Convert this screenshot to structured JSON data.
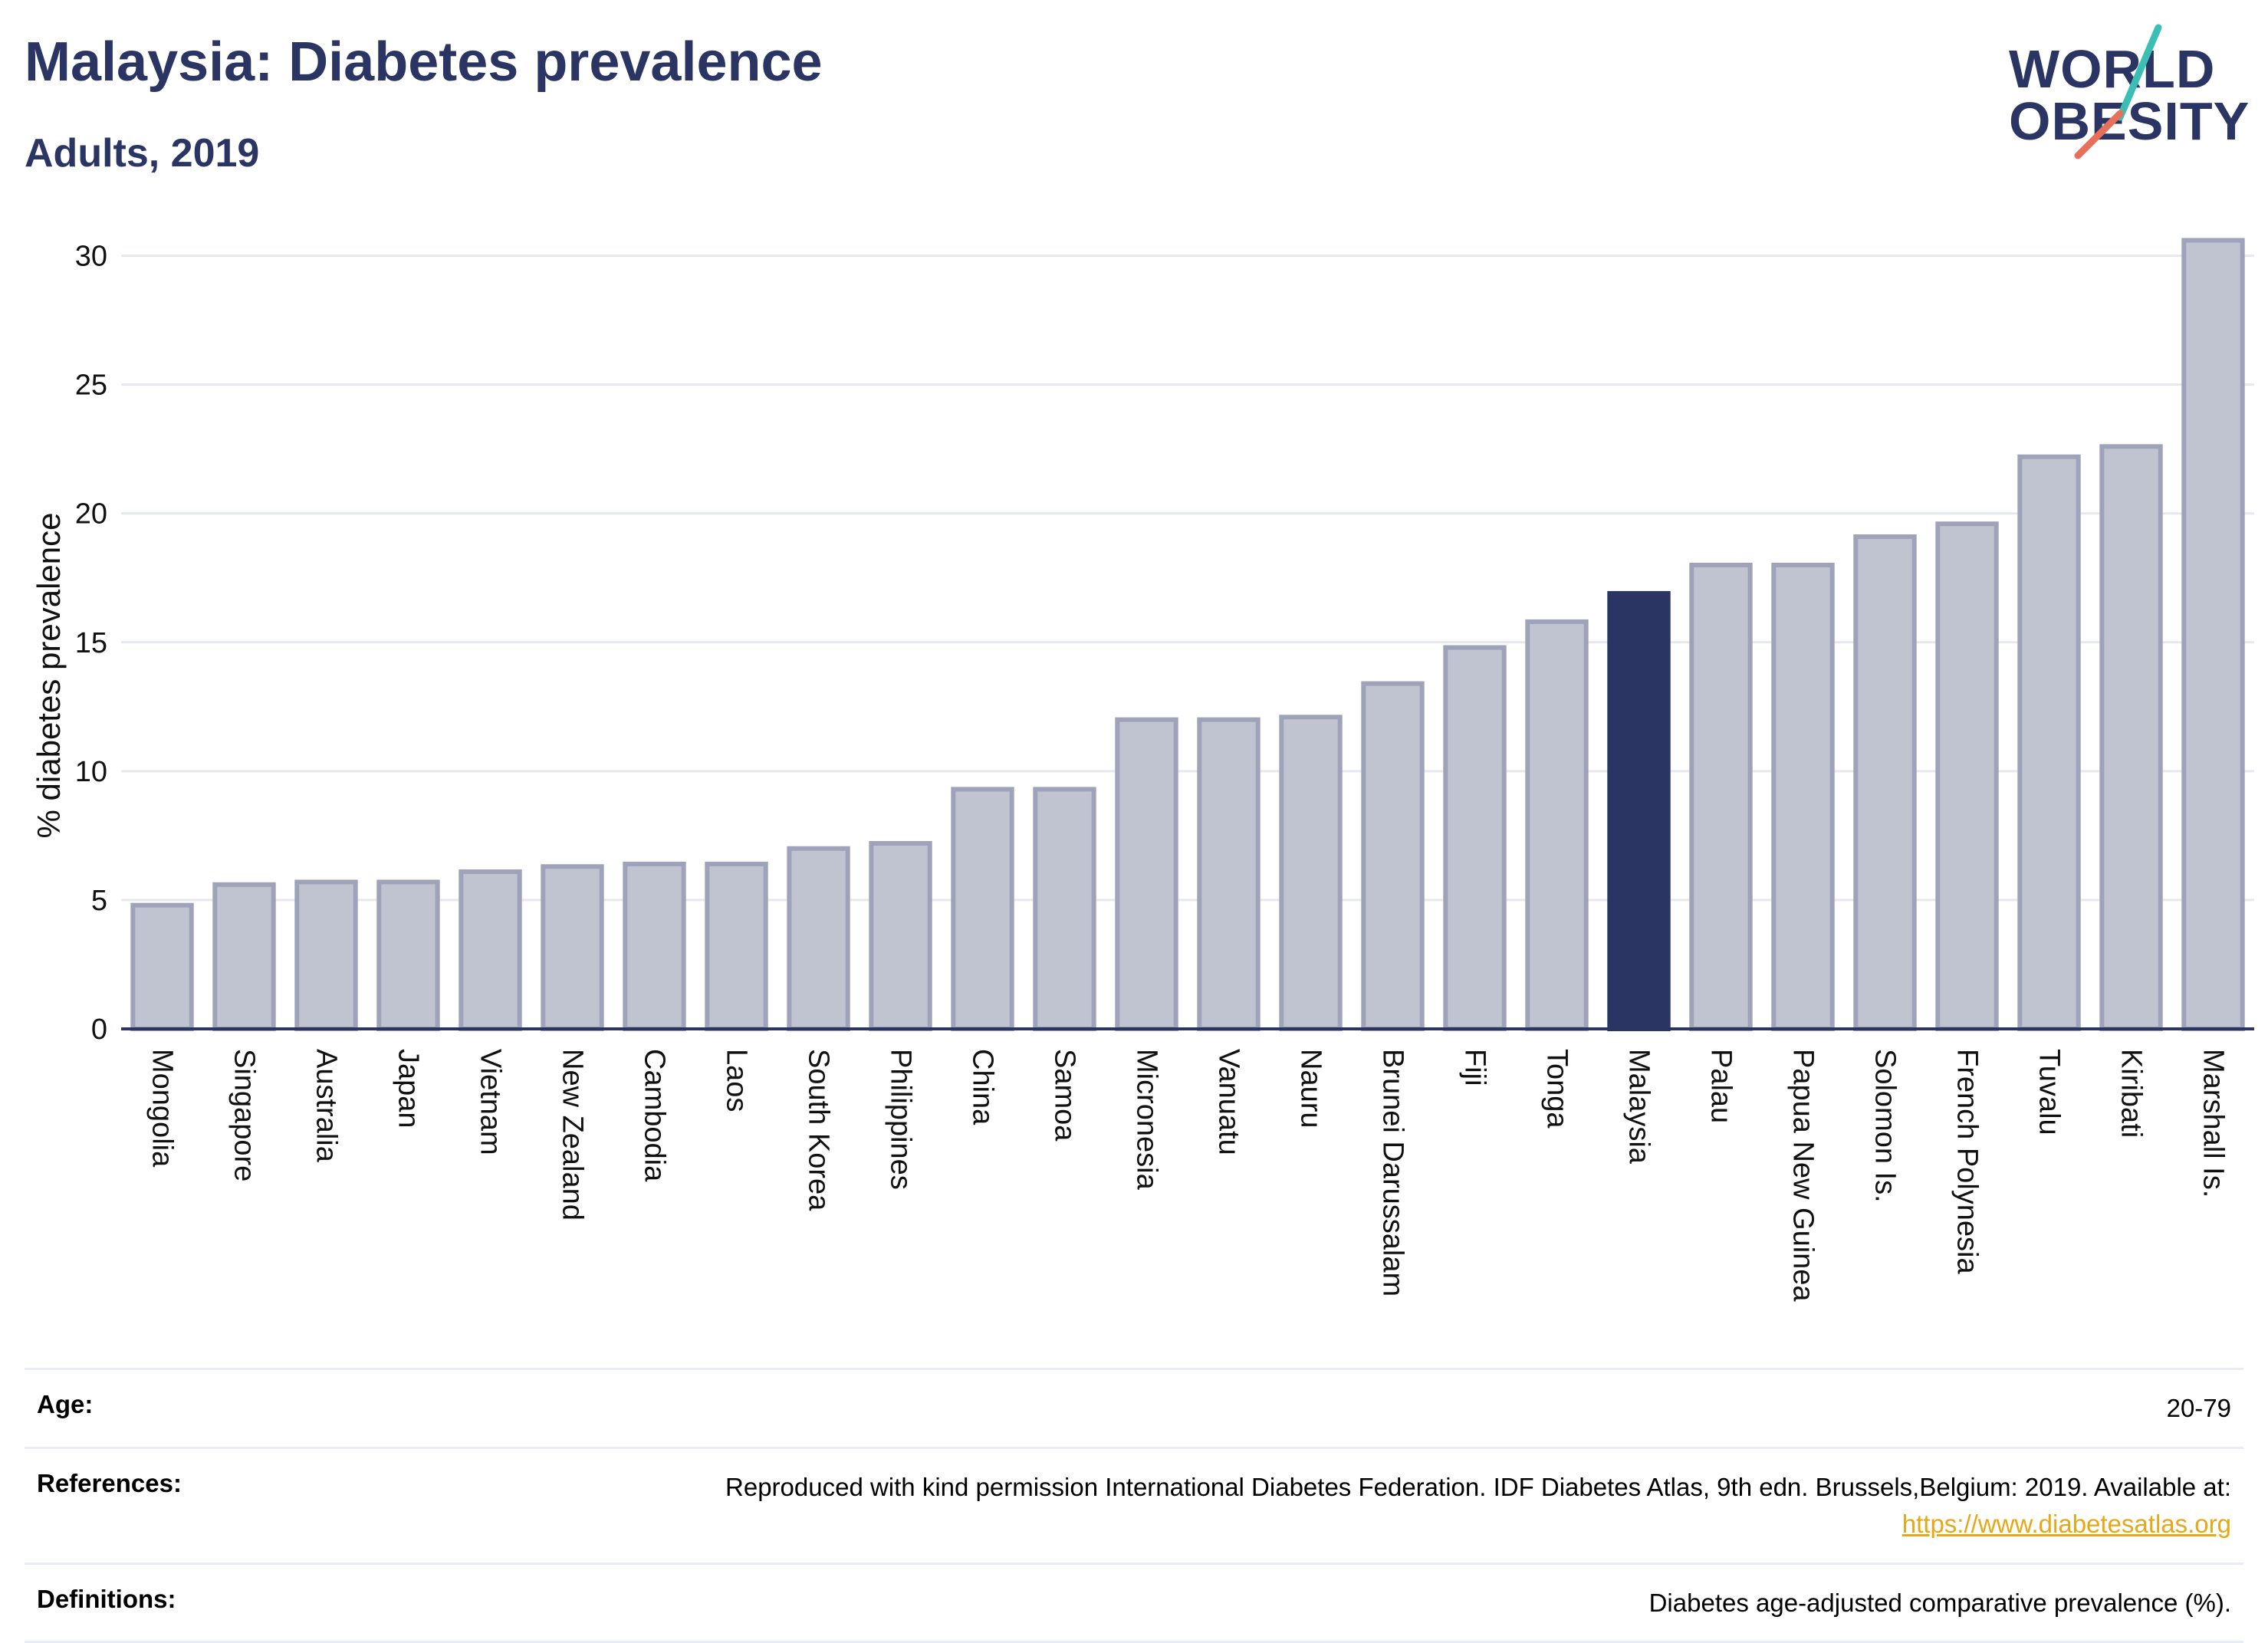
{
  "header": {
    "title": "Malaysia: Diabetes prevalence",
    "subtitle": "Adults, 2019"
  },
  "logo": {
    "line1": "WORLD",
    "line2": "OBESITY",
    "text_color": "#2b3563",
    "slash_colors": [
      "#3bbfb5",
      "#e8705a"
    ]
  },
  "chart_data": {
    "type": "bar",
    "ylabel": "% diabetes prevalence",
    "xlabel": "",
    "ylim": [
      0,
      31
    ],
    "yticks": [
      0,
      5,
      10,
      15,
      20,
      25,
      30
    ],
    "grid": true,
    "highlight": "Malaysia",
    "colors": {
      "bar": "#c0c3d0",
      "bar_border": "#9ea3ba",
      "highlight": "#2b3563"
    },
    "categories": [
      "Mongolia",
      "Singapore",
      "Australia",
      "Japan",
      "Vietnam",
      "New Zealand",
      "Cambodia",
      "Laos",
      "South Korea",
      "Philippines",
      "China",
      "Samoa",
      "Micronesia",
      "Vanuatu",
      "Nauru",
      "Brunei Darussalam",
      "Fiji",
      "Tonga",
      "Malaysia",
      "Palau",
      "Papua New Guinea",
      "Solomon Is.",
      "French Polynesia",
      "Tuvalu",
      "Kiribati",
      "Marshall Is."
    ],
    "values": [
      4.8,
      5.6,
      5.7,
      5.7,
      6.1,
      6.3,
      6.4,
      6.4,
      7.0,
      7.2,
      9.3,
      9.3,
      12.0,
      12.0,
      12.1,
      13.4,
      14.8,
      15.8,
      16.9,
      18.0,
      18.0,
      19.1,
      19.6,
      22.2,
      22.6,
      30.6
    ]
  },
  "info": {
    "age_label": "Age:",
    "age_value": "20-79",
    "references_label": "References:",
    "references_value": "Reproduced with kind permission International Diabetes Federation. IDF Diabetes Atlas, 9th edn. Brussels,Belgium: 2019. Available at:",
    "references_link": "https://www.diabetesatlas.org",
    "definitions_label": "Definitions:",
    "definitions_value": "Diabetes age-adjusted comparative prevalence (%)."
  }
}
